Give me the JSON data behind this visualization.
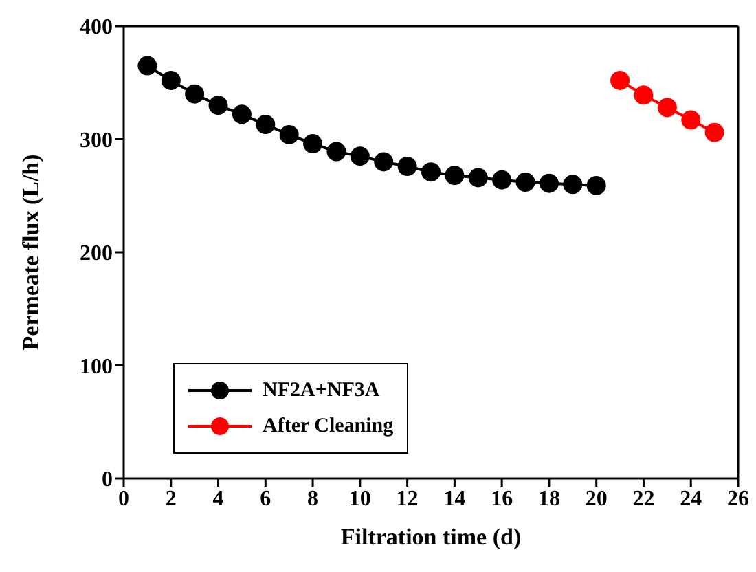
{
  "chart_data": {
    "type": "line",
    "xlabel": "Filtration time (d)",
    "ylabel": "Permeate flux (L/h)",
    "xlim": [
      0,
      26
    ],
    "xticks": [
      0,
      2,
      4,
      6,
      8,
      10,
      12,
      14,
      16,
      18,
      20,
      22,
      24,
      26
    ],
    "ylim": [
      0,
      400
    ],
    "yticks": [
      0,
      100,
      200,
      300,
      400
    ],
    "grid": false,
    "legend": "bottom left",
    "marker": "circle",
    "line_style": "solid",
    "series": [
      {
        "name": "NF2A+NF3A",
        "color": "#000000",
        "x": [
          1,
          2,
          3,
          4,
          5,
          6,
          7,
          8,
          9,
          10,
          11,
          12,
          13,
          14,
          15,
          16,
          17,
          18,
          19,
          20
        ],
        "values": [
          365,
          352,
          340,
          330,
          322,
          313,
          304,
          296,
          289,
          285,
          280,
          276,
          271,
          268,
          266,
          264,
          262,
          261,
          260,
          259
        ]
      },
      {
        "name": "After Cleaning",
        "color": "#ff0000",
        "x": [
          21,
          22,
          23,
          24,
          25
        ],
        "values": [
          352,
          339,
          328,
          317,
          306
        ]
      }
    ]
  }
}
